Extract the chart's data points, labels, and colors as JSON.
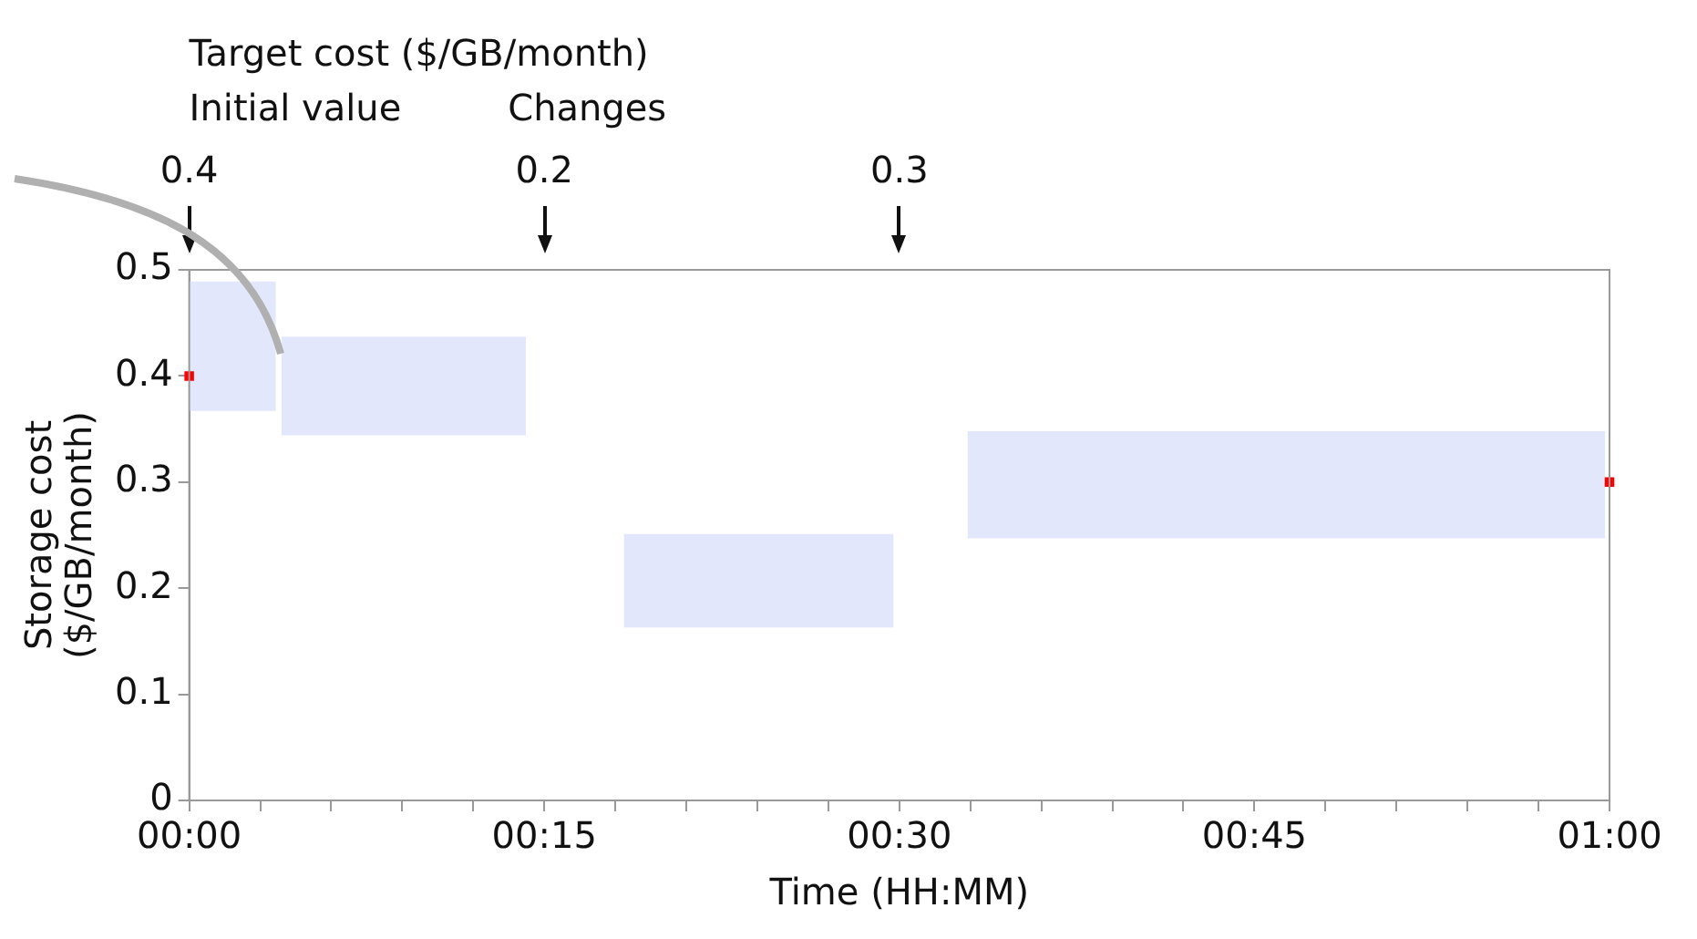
{
  "chart_data": {
    "type": "area",
    "xlabel": "Time (HH:MM)",
    "ylabel": "Storage cost\n($/GB/month)",
    "xlim": [
      0,
      1
    ],
    "xticks": [
      {
        "value": 0,
        "label": "00:00"
      },
      {
        "value": 0.05,
        "label": null
      },
      {
        "value": 0.1,
        "label": null
      },
      {
        "value": 0.15,
        "label": null
      },
      {
        "value": 0.2,
        "label": null
      },
      {
        "value": 0.25,
        "label": "00:15"
      },
      {
        "value": 0.3,
        "label": null
      },
      {
        "value": 0.35,
        "label": null
      },
      {
        "value": 0.4,
        "label": null
      },
      {
        "value": 0.45,
        "label": null
      },
      {
        "value": 0.5,
        "label": "00:30"
      },
      {
        "value": 0.55,
        "label": null
      },
      {
        "value": 0.6,
        "label": null
      },
      {
        "value": 0.65,
        "label": null
      },
      {
        "value": 0.7,
        "label": null
      },
      {
        "value": 0.75,
        "label": "00:45"
      },
      {
        "value": 0.8,
        "label": null
      },
      {
        "value": 0.85,
        "label": null
      },
      {
        "value": 0.9,
        "label": null
      },
      {
        "value": 0.95,
        "label": null
      },
      {
        "value": 1,
        "label": "01:00"
      }
    ],
    "ylim": [
      0,
      0.5
    ],
    "yticks": [
      0,
      0.1,
      0.2,
      0.3,
      0.4,
      0.5
    ],
    "grid": false,
    "legend": false,
    "series": [
      {
        "type": "area",
        "color": "#e3e7fb",
        "x": [
          0,
          0.061
        ],
        "lower": [
          0.367,
          0.367
        ],
        "upper": [
          0.489,
          0.489
        ],
        "values": [
          null,
          null
        ]
      },
      {
        "type": "area",
        "color": "#e3e7fb",
        "x": [
          0.065,
          0.237
        ],
        "lower": [
          0.344,
          0.344
        ],
        "upper": [
          0.437,
          0.437
        ],
        "values": [
          null,
          null
        ]
      },
      {
        "type": "area",
        "color": "#e3e7fb",
        "x": [
          0.306,
          0.496
        ],
        "lower": [
          0.163,
          0.163
        ],
        "upper": [
          0.251,
          0.251
        ],
        "values": [
          null,
          null
        ]
      },
      {
        "type": "area",
        "color": "#e3e7fb",
        "x": [
          0.548,
          0.997
        ],
        "lower": [
          0.247,
          0.247
        ],
        "upper": [
          0.348,
          0.348
        ],
        "values": [
          null,
          null
        ]
      },
      {
        "type": "scatter",
        "color": "#ff0000",
        "marker": "square",
        "x": [
          0,
          1
        ],
        "values": [
          0.4,
          0.3
        ]
      }
    ],
    "annotations": [
      "Target cost ($/GB/month)",
      "Initial value",
      "Changes",
      "0.4",
      "0.2",
      "0.3"
    ]
  }
}
